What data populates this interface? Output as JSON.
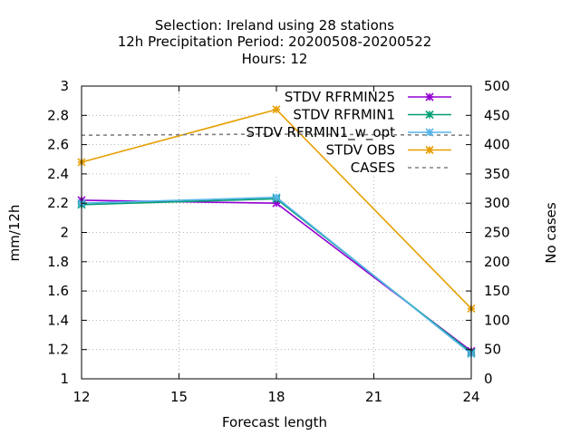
{
  "chart_data": {
    "type": "line",
    "title_lines": [
      "Selection: Ireland using    28 stations",
      "12h Precipitation    Period: 20200508-20200522",
      "Hours:  12"
    ],
    "xlabel": "Forecast length",
    "ylabel": "mm/12h",
    "y2label": "No cases",
    "x_ticks": [
      "12",
      "15",
      "18",
      "21",
      "24"
    ],
    "y_ticks": [
      "1",
      "1.2",
      "1.4",
      "1.6",
      "1.8",
      "2",
      "2.2",
      "2.4",
      "2.6",
      "2.8",
      "3"
    ],
    "y2_ticks": [
      "0",
      "50",
      "100",
      "150",
      "200",
      "250",
      "300",
      "350",
      "400",
      "450",
      "500"
    ],
    "xlim": [
      12,
      24
    ],
    "ylim": [
      1,
      3
    ],
    "y2lim": [
      0,
      500
    ],
    "grid": true,
    "legend_position": "top-right",
    "series": [
      {
        "name": "STDV RFRMIN25",
        "color": "#9400d3",
        "axis": "y",
        "dash": false,
        "marker": "x",
        "x": [
          12,
          18,
          24
        ],
        "y": [
          2.22,
          2.2,
          1.19
        ]
      },
      {
        "name": "STDV RFRMIN1",
        "color": "#009e73",
        "axis": "y",
        "dash": false,
        "marker": "x",
        "x": [
          12,
          18,
          24
        ],
        "y": [
          2.19,
          2.23,
          1.18
        ]
      },
      {
        "name": "STDV RFRMIN1_w_opt",
        "color": "#56b4e9",
        "axis": "y",
        "dash": false,
        "marker": "x",
        "x": [
          12,
          18,
          24
        ],
        "y": [
          2.2,
          2.24,
          1.17
        ]
      },
      {
        "name": "STDV OBS",
        "color": "#e69f00",
        "axis": "y",
        "dash": false,
        "marker": "x",
        "x": [
          12,
          18,
          24
        ],
        "y": [
          2.48,
          2.84,
          1.48
        ]
      },
      {
        "name": "CASES",
        "color": "#808080",
        "axis": "y2",
        "dash": true,
        "marker": "none",
        "x": [
          12,
          18,
          24
        ],
        "y": [
          416,
          418,
          416
        ]
      }
    ]
  }
}
